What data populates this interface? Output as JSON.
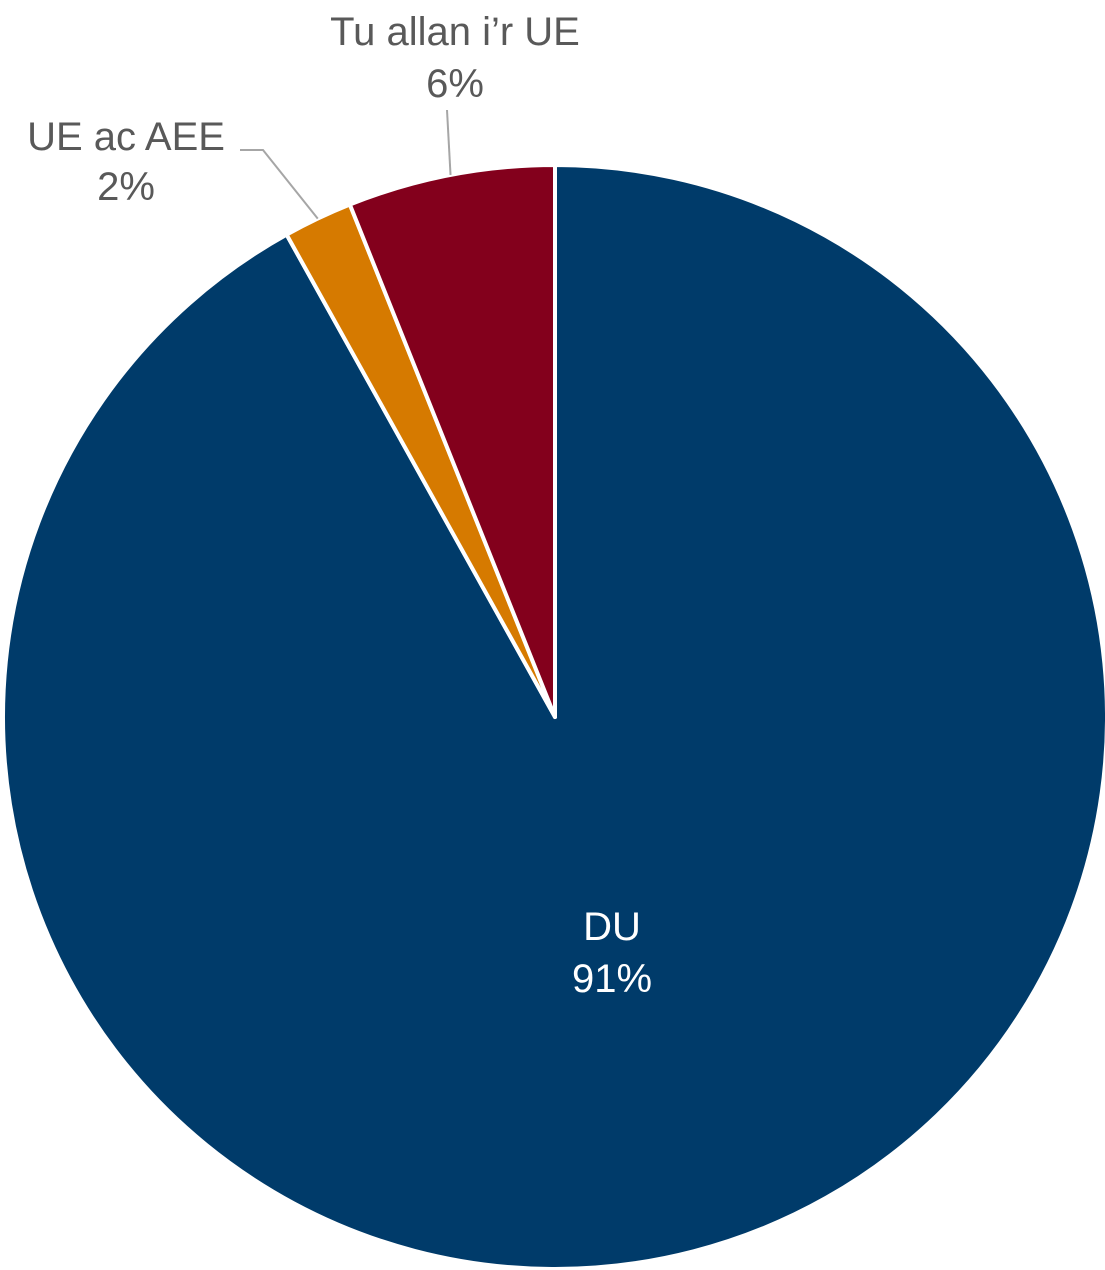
{
  "chart_data": {
    "type": "pie",
    "title": "",
    "slices": [
      {
        "label": "DU",
        "value": 91,
        "value_label": "91%",
        "color": "#003b6a"
      },
      {
        "label": "UE ac AEE",
        "value": 2,
        "value_label": "2%",
        "color": "#d67a00"
      },
      {
        "label": "Tu allan i’r UE",
        "value": 6,
        "value_label": "6%",
        "color": "#83001c"
      }
    ],
    "label_color_inside": "#ffffff",
    "label_color_outside": "#595959",
    "legend": "none"
  }
}
